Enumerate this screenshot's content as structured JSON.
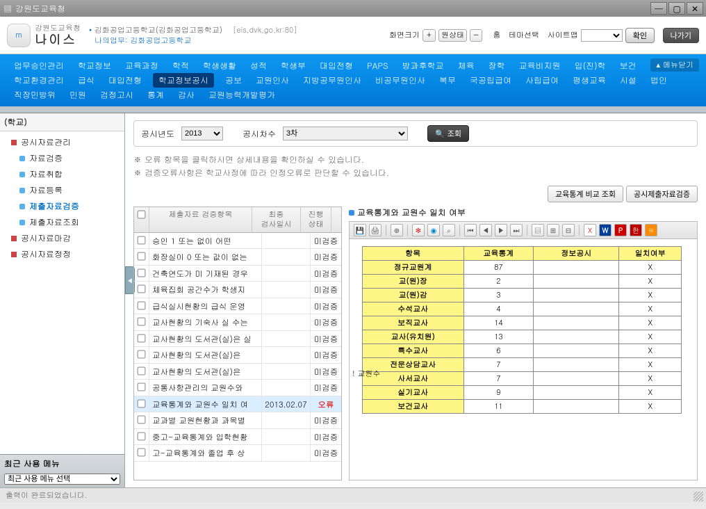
{
  "window": {
    "title": "강원도교육청"
  },
  "logo": {
    "small": "강원도교육청",
    "big": "나이스",
    "mark": "m"
  },
  "school": {
    "line1a": "김화공업고등학교(김화공업고등학교)",
    "line1b": "[eis,dvk,go,kr:80]",
    "line2a": "나의업무:",
    "line2b": "김화공업고등학교"
  },
  "header_right": {
    "zoom_label": "화면크기",
    "plus": "＋",
    "orig": "원상태",
    "minus": "−",
    "home": "홈",
    "theme": "테마선택",
    "sitemap": "사이트맵",
    "confirm": "확인",
    "exit": "나가기"
  },
  "nav": {
    "close": "메뉴닫기",
    "rows": [
      [
        "업무승인관리",
        "학교정보",
        "교육과정",
        "학적",
        "학생생활",
        "성적",
        "학생부",
        "대입전형",
        "PAPS",
        "방과후학교",
        "체육",
        "장학",
        "교육비지원",
        "입(진)학",
        "보건"
      ],
      [
        "학교환경관리",
        "급식",
        "대입전형",
        "학교정보공시",
        "공보",
        "교원인사",
        "지방공무원인사",
        "비공무원인사",
        "복무",
        "국공립급여",
        "사립급여",
        "평생교육",
        "시설",
        "법인"
      ],
      [
        "직장민방위",
        "민원",
        "검정고시",
        "통계",
        "감사",
        "교원능력개발평가"
      ]
    ],
    "active": "학교정보공시"
  },
  "sidebar": {
    "top_label": "(학교)",
    "root": "공시자료관리",
    "items": [
      {
        "label": "자료검증",
        "sel": false
      },
      {
        "label": "자료취합",
        "sel": false
      },
      {
        "label": "자료등록",
        "sel": false
      },
      {
        "label": "제출자료검증",
        "sel": true
      },
      {
        "label": "제출자료조회",
        "sel": false
      }
    ],
    "extra": [
      {
        "label": "공시자료마감"
      },
      {
        "label": "공시자료정정"
      }
    ],
    "recent_title": "최근 사용 메뉴",
    "recent_select": "최근 사용 메뉴 선택"
  },
  "filter": {
    "year_label": "공시년도",
    "year_value": "2013",
    "round_label": "공시차수",
    "round_value": "3차",
    "search": "조회"
  },
  "notes": {
    "n1": "※ 오류 항목을 클릭하시면 상세내용을 확인하실 수 있습니다.",
    "n2": "※ 검증오류사항은 학교사정에 따라 인정오류로 판단할 수 있습니다."
  },
  "top_buttons": {
    "b1": "교육통계 비교 조회",
    "b2": "공시제출자료검증"
  },
  "left_grid": {
    "cols": [
      "",
      "제출자료 검증항목",
      "최종\n검사일시",
      "진행\n상태"
    ],
    "rows": [
      {
        "t": "승인 1 또는 없이 어떤",
        "d": "",
        "s": "미검증"
      },
      {
        "t": "화장실이 0 또는 값이 없는",
        "d": "",
        "s": "미검증"
      },
      {
        "t": "건축연도가 미 기재된 경우",
        "d": "",
        "s": "미검증"
      },
      {
        "t": "체육집회 공간수가 학생지",
        "d": "",
        "s": "미검증"
      },
      {
        "t": "급식실시현황의 급식 운영",
        "d": "",
        "s": "미검증"
      },
      {
        "t": "교사현황의 기숙사 실 수는",
        "d": "",
        "s": "미검증"
      },
      {
        "t": "교사현황의 도서관(실)은 실",
        "d": "",
        "s": "미검증"
      },
      {
        "t": "교사현황의 도서관(실)은 ",
        "d": "",
        "s": "미검증"
      },
      {
        "t": "교사현황의 도서관(실)은 ",
        "d": "",
        "s": "미검증"
      },
      {
        "t": "공통사항관리의 교원수와",
        "d": "",
        "s": "미검증"
      },
      {
        "t": "교육통계와 교원수 일치 여",
        "d": "2013.02.07",
        "s": "오류",
        "sel": true,
        "err": true
      },
      {
        "t": "교과별 교원현황과 과목별",
        "d": "",
        "s": "미검증"
      },
      {
        "t": "중고-교육통계와 입학현황",
        "d": "",
        "s": "미검증"
      },
      {
        "t": "고-교육통계와 졸업 후 상",
        "d": "",
        "s": "미검증"
      }
    ]
  },
  "right": {
    "title": "교육통계와 교원수 일치 여부",
    "side_label": "! 교원수",
    "cols": [
      "항목",
      "교육통계",
      "정보공시",
      "일치여부"
    ],
    "rows": [
      {
        "k": "정규교원계",
        "a": "87",
        "b": "",
        "m": "X"
      },
      {
        "k": "교(원)장",
        "a": "2",
        "b": "",
        "m": "X"
      },
      {
        "k": "교(원)감",
        "a": "3",
        "b": "",
        "m": "X"
      },
      {
        "k": "수석교사",
        "a": "4",
        "b": "",
        "m": "X"
      },
      {
        "k": "보직교사",
        "a": "14",
        "b": "",
        "m": "X"
      },
      {
        "k": "교사(유치원)",
        "a": "13",
        "b": "",
        "m": "X"
      },
      {
        "k": "특수교사",
        "a": "6",
        "b": "",
        "m": "X"
      },
      {
        "k": "전문상담교사",
        "a": "7",
        "b": "",
        "m": "X"
      },
      {
        "k": "사서교사",
        "a": "7",
        "b": "",
        "m": "X"
      },
      {
        "k": "실기교사",
        "a": "9",
        "b": "",
        "m": "X"
      },
      {
        "k": "보건교사",
        "a": "11",
        "b": "",
        "m": "X"
      }
    ]
  },
  "status": {
    "text": "출력이 완료되었습니다."
  }
}
